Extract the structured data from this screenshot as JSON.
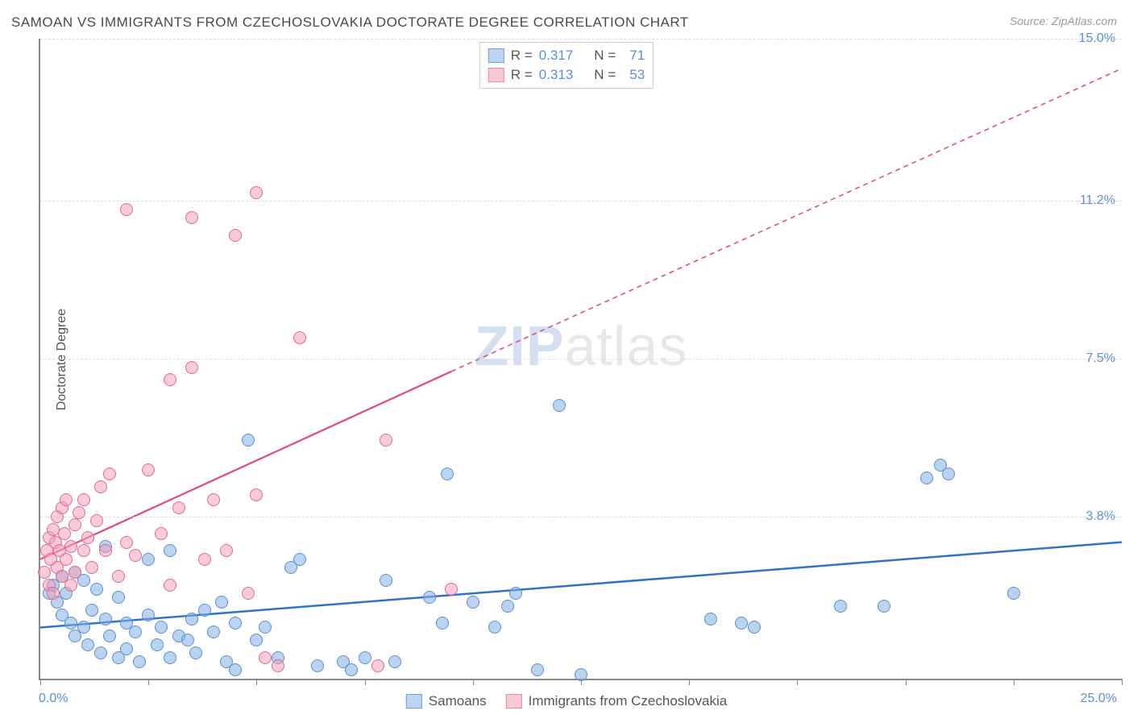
{
  "title": "SAMOAN VS IMMIGRANTS FROM CZECHOSLOVAKIA DOCTORATE DEGREE CORRELATION CHART",
  "source_label": "Source: ZipAtlas.com",
  "ylabel": "Doctorate Degree",
  "watermark_bold": "ZIP",
  "watermark_light": "atlas",
  "chart": {
    "type": "scatter",
    "background_color": "#ffffff",
    "grid_color": "#dddddd",
    "axis_color": "#888888",
    "xlim": [
      0,
      25
    ],
    "ylim": [
      0,
      15
    ],
    "x_ticks": [
      0,
      2.5,
      5,
      7.5,
      10,
      12.5,
      15,
      17.5,
      20,
      22.5,
      25
    ],
    "y_gridlines": [
      3.8,
      7.5,
      11.2,
      15.0
    ],
    "y_tick_labels": [
      "3.8%",
      "7.5%",
      "11.2%",
      "15.0%"
    ],
    "x_min_label": "0.0%",
    "x_max_label": "25.0%",
    "point_radius": 8,
    "tick_label_color": "#5b8fd6",
    "tick_label_fontsize": 16
  },
  "top_legend": {
    "rows": [
      {
        "swatch_fill": "#bcd5f0",
        "swatch_border": "#6ca0de",
        "r_label": "R =",
        "r_value": "0.317",
        "n_label": "N =",
        "n_value": "71"
      },
      {
        "swatch_fill": "#f7c9d4",
        "swatch_border": "#e88aa5",
        "r_label": "R =",
        "r_value": "0.313",
        "n_label": "N =",
        "n_value": "53"
      }
    ]
  },
  "bottom_legend": {
    "items": [
      {
        "swatch_fill": "#bcd5f0",
        "swatch_border": "#6ca0de",
        "label": "Samoans"
      },
      {
        "swatch_fill": "#f7c9d4",
        "swatch_border": "#e88aa5",
        "label": "Immigrants from Czechoslovakia"
      }
    ]
  },
  "series": [
    {
      "name": "Samoans",
      "color_fill": "rgba(130,175,225,0.55)",
      "color_border": "#5b8fd6",
      "trend": {
        "x1": 0,
        "y1": 1.2,
        "x2": 25,
        "y2": 3.2,
        "stroke": "#2f73c9",
        "width": 2.5,
        "dash": "none",
        "extend_x2": 25,
        "extend_y2": 3.2
      },
      "points": [
        [
          0.2,
          2.0
        ],
        [
          0.3,
          2.2
        ],
        [
          0.4,
          1.8
        ],
        [
          0.5,
          2.4
        ],
        [
          0.5,
          1.5
        ],
        [
          0.6,
          2.0
        ],
        [
          0.7,
          1.3
        ],
        [
          0.8,
          2.5
        ],
        [
          0.8,
          1.0
        ],
        [
          1.0,
          2.3
        ],
        [
          1.0,
          1.2
        ],
        [
          1.1,
          0.8
        ],
        [
          1.2,
          1.6
        ],
        [
          1.3,
          2.1
        ],
        [
          1.4,
          0.6
        ],
        [
          1.5,
          1.4
        ],
        [
          1.5,
          3.1
        ],
        [
          1.6,
          1.0
        ],
        [
          1.8,
          1.9
        ],
        [
          1.8,
          0.5
        ],
        [
          2.0,
          1.3
        ],
        [
          2.0,
          0.7
        ],
        [
          2.2,
          1.1
        ],
        [
          2.3,
          0.4
        ],
        [
          2.5,
          2.8
        ],
        [
          2.5,
          1.5
        ],
        [
          2.7,
          0.8
        ],
        [
          2.8,
          1.2
        ],
        [
          3.0,
          0.5
        ],
        [
          3.0,
          3.0
        ],
        [
          3.2,
          1.0
        ],
        [
          3.4,
          0.9
        ],
        [
          3.5,
          1.4
        ],
        [
          3.6,
          0.6
        ],
        [
          3.8,
          1.6
        ],
        [
          4.0,
          1.1
        ],
        [
          4.2,
          1.8
        ],
        [
          4.3,
          0.4
        ],
        [
          4.5,
          1.3
        ],
        [
          4.5,
          0.2
        ],
        [
          4.8,
          5.6
        ],
        [
          5.0,
          0.9
        ],
        [
          5.2,
          1.2
        ],
        [
          5.5,
          0.5
        ],
        [
          5.8,
          2.6
        ],
        [
          6.0,
          2.8
        ],
        [
          6.4,
          0.3
        ],
        [
          7.0,
          0.4
        ],
        [
          7.2,
          0.2
        ],
        [
          7.5,
          0.5
        ],
        [
          8.0,
          2.3
        ],
        [
          8.2,
          0.4
        ],
        [
          9.0,
          1.9
        ],
        [
          9.3,
          1.3
        ],
        [
          9.4,
          4.8
        ],
        [
          10.0,
          1.8
        ],
        [
          10.5,
          1.2
        ],
        [
          10.8,
          1.7
        ],
        [
          11.0,
          2.0
        ],
        [
          11.5,
          0.2
        ],
        [
          12.0,
          6.4
        ],
        [
          12.5,
          0.1
        ],
        [
          15.5,
          1.4
        ],
        [
          16.2,
          1.3
        ],
        [
          16.5,
          1.2
        ],
        [
          18.5,
          1.7
        ],
        [
          19.5,
          1.7
        ],
        [
          20.5,
          4.7
        ],
        [
          20.8,
          5.0
        ],
        [
          21.0,
          4.8
        ],
        [
          22.5,
          2.0
        ]
      ]
    },
    {
      "name": "Immigrants from Czechoslovakia",
      "color_fill": "rgba(240,160,185,0.55)",
      "color_border": "#e06b8e",
      "trend": {
        "x1": 0,
        "y1": 2.8,
        "x2": 9.5,
        "y2": 7.2,
        "stroke": "#e14b7b",
        "width": 2.2,
        "dash": "none",
        "extend_x2": 25,
        "extend_y2": 14.3,
        "extend_dash": "6,5"
      },
      "points": [
        [
          0.1,
          2.5
        ],
        [
          0.15,
          3.0
        ],
        [
          0.2,
          2.2
        ],
        [
          0.2,
          3.3
        ],
        [
          0.25,
          2.8
        ],
        [
          0.3,
          3.5
        ],
        [
          0.3,
          2.0
        ],
        [
          0.35,
          3.2
        ],
        [
          0.4,
          2.6
        ],
        [
          0.4,
          3.8
        ],
        [
          0.45,
          3.0
        ],
        [
          0.5,
          4.0
        ],
        [
          0.5,
          2.4
        ],
        [
          0.55,
          3.4
        ],
        [
          0.6,
          2.8
        ],
        [
          0.6,
          4.2
        ],
        [
          0.7,
          3.1
        ],
        [
          0.7,
          2.2
        ],
        [
          0.8,
          3.6
        ],
        [
          0.8,
          2.5
        ],
        [
          0.9,
          3.9
        ],
        [
          1.0,
          3.0
        ],
        [
          1.0,
          4.2
        ],
        [
          1.1,
          3.3
        ],
        [
          1.2,
          2.6
        ],
        [
          1.3,
          3.7
        ],
        [
          1.4,
          4.5
        ],
        [
          1.5,
          3.0
        ],
        [
          1.6,
          4.8
        ],
        [
          1.8,
          2.4
        ],
        [
          2.0,
          3.2
        ],
        [
          2.0,
          11.0
        ],
        [
          2.2,
          2.9
        ],
        [
          2.5,
          4.9
        ],
        [
          2.8,
          3.4
        ],
        [
          3.0,
          7.0
        ],
        [
          3.0,
          2.2
        ],
        [
          3.2,
          4.0
        ],
        [
          3.5,
          7.3
        ],
        [
          3.5,
          10.8
        ],
        [
          3.8,
          2.8
        ],
        [
          4.0,
          4.2
        ],
        [
          4.3,
          3.0
        ],
        [
          4.5,
          10.4
        ],
        [
          4.8,
          2.0
        ],
        [
          5.0,
          4.3
        ],
        [
          5.0,
          11.4
        ],
        [
          5.2,
          0.5
        ],
        [
          5.5,
          0.3
        ],
        [
          6.0,
          8.0
        ],
        [
          7.8,
          0.3
        ],
        [
          8.0,
          5.6
        ],
        [
          9.5,
          2.1
        ]
      ]
    }
  ]
}
